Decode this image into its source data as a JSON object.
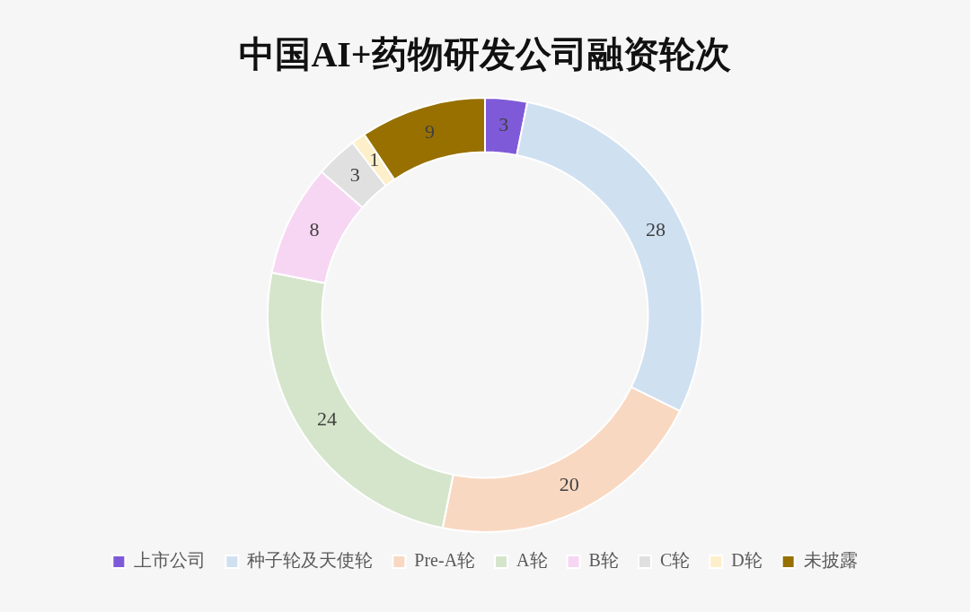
{
  "chart_data": {
    "type": "donut",
    "title": "中国AI+药物研发公司融资轮次",
    "categories": [
      "上市公司",
      "种子轮及天使轮",
      "Pre-A轮",
      "A轮",
      "B轮",
      "C轮",
      "D轮",
      "未披露"
    ],
    "values": [
      3,
      28,
      20,
      24,
      8,
      3,
      1,
      9
    ],
    "colors": [
      "#7f5ad8",
      "#cfe0f1",
      "#f9d8c2",
      "#d5e5cb",
      "#f7d6f3",
      "#e0e0e0",
      "#fdefc9",
      "#977000"
    ],
    "data_labels": true,
    "legend": "bottom"
  }
}
